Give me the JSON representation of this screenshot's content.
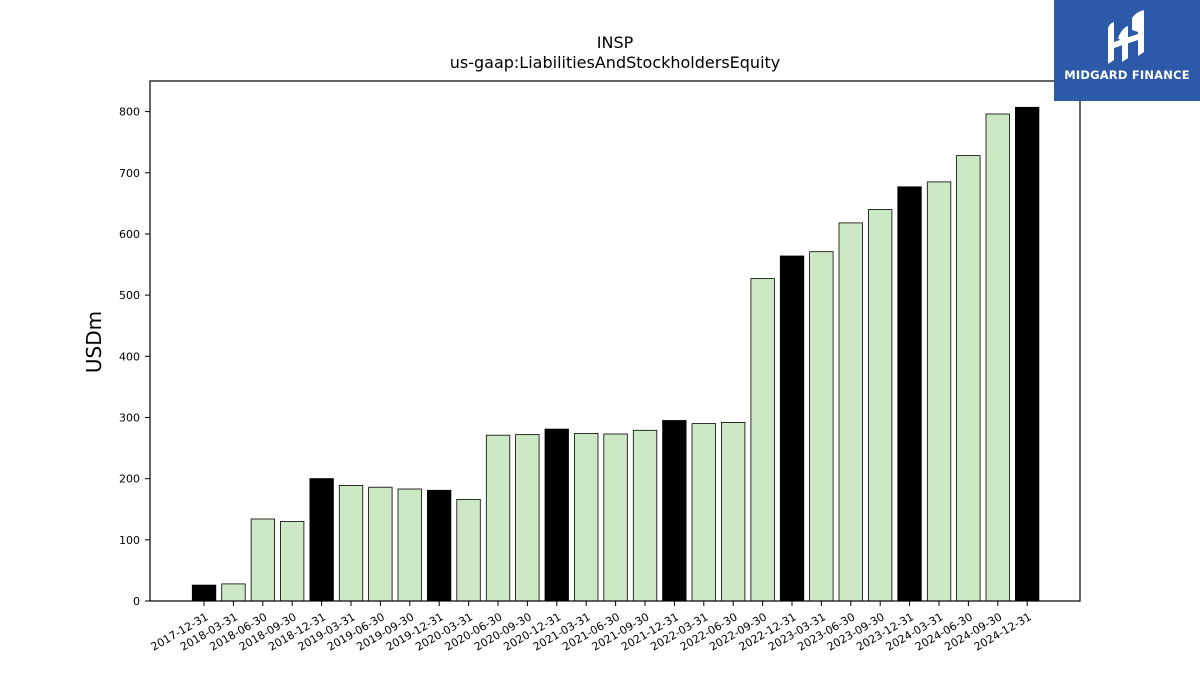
{
  "colors": {
    "q4_bar": "#000000",
    "other_bar": "#cde8c5",
    "bar_edge": "#000000",
    "logo_bg": "#2d5aa8"
  },
  "logo": {
    "text": "MIDGARD FINANCE",
    "icon": "midgard-logo-icon"
  },
  "chart_data": {
    "type": "bar",
    "title": "INSP",
    "subtitle": "us-gaap:LiabilitiesAndStockholdersEquity",
    "xlabel": "",
    "ylabel": "USDm",
    "ylim": [
      0,
      850
    ],
    "yticks": [
      0,
      100,
      200,
      300,
      400,
      500,
      600,
      700,
      800
    ],
    "grid": false,
    "legend": "none",
    "categories": [
      "2017-12-31",
      "2018-03-31",
      "2018-06-30",
      "2018-09-30",
      "2018-12-31",
      "2019-03-31",
      "2019-06-30",
      "2019-09-30",
      "2019-12-31",
      "2020-03-31",
      "2020-06-30",
      "2020-09-30",
      "2020-12-31",
      "2021-03-31",
      "2021-06-30",
      "2021-09-30",
      "2021-12-31",
      "2022-03-31",
      "2022-06-30",
      "2022-09-30",
      "2022-12-31",
      "2023-03-31",
      "2023-06-30",
      "2023-09-30",
      "2023-12-31",
      "2024-03-31",
      "2024-06-30",
      "2024-09-30",
      "2024-12-31"
    ],
    "values": [
      26,
      28,
      134,
      130,
      200,
      189,
      186,
      183,
      181,
      166,
      271,
      272,
      281,
      274,
      273,
      279,
      295,
      290,
      292,
      527,
      564,
      571,
      618,
      640,
      677,
      685,
      728,
      796,
      807
    ]
  }
}
